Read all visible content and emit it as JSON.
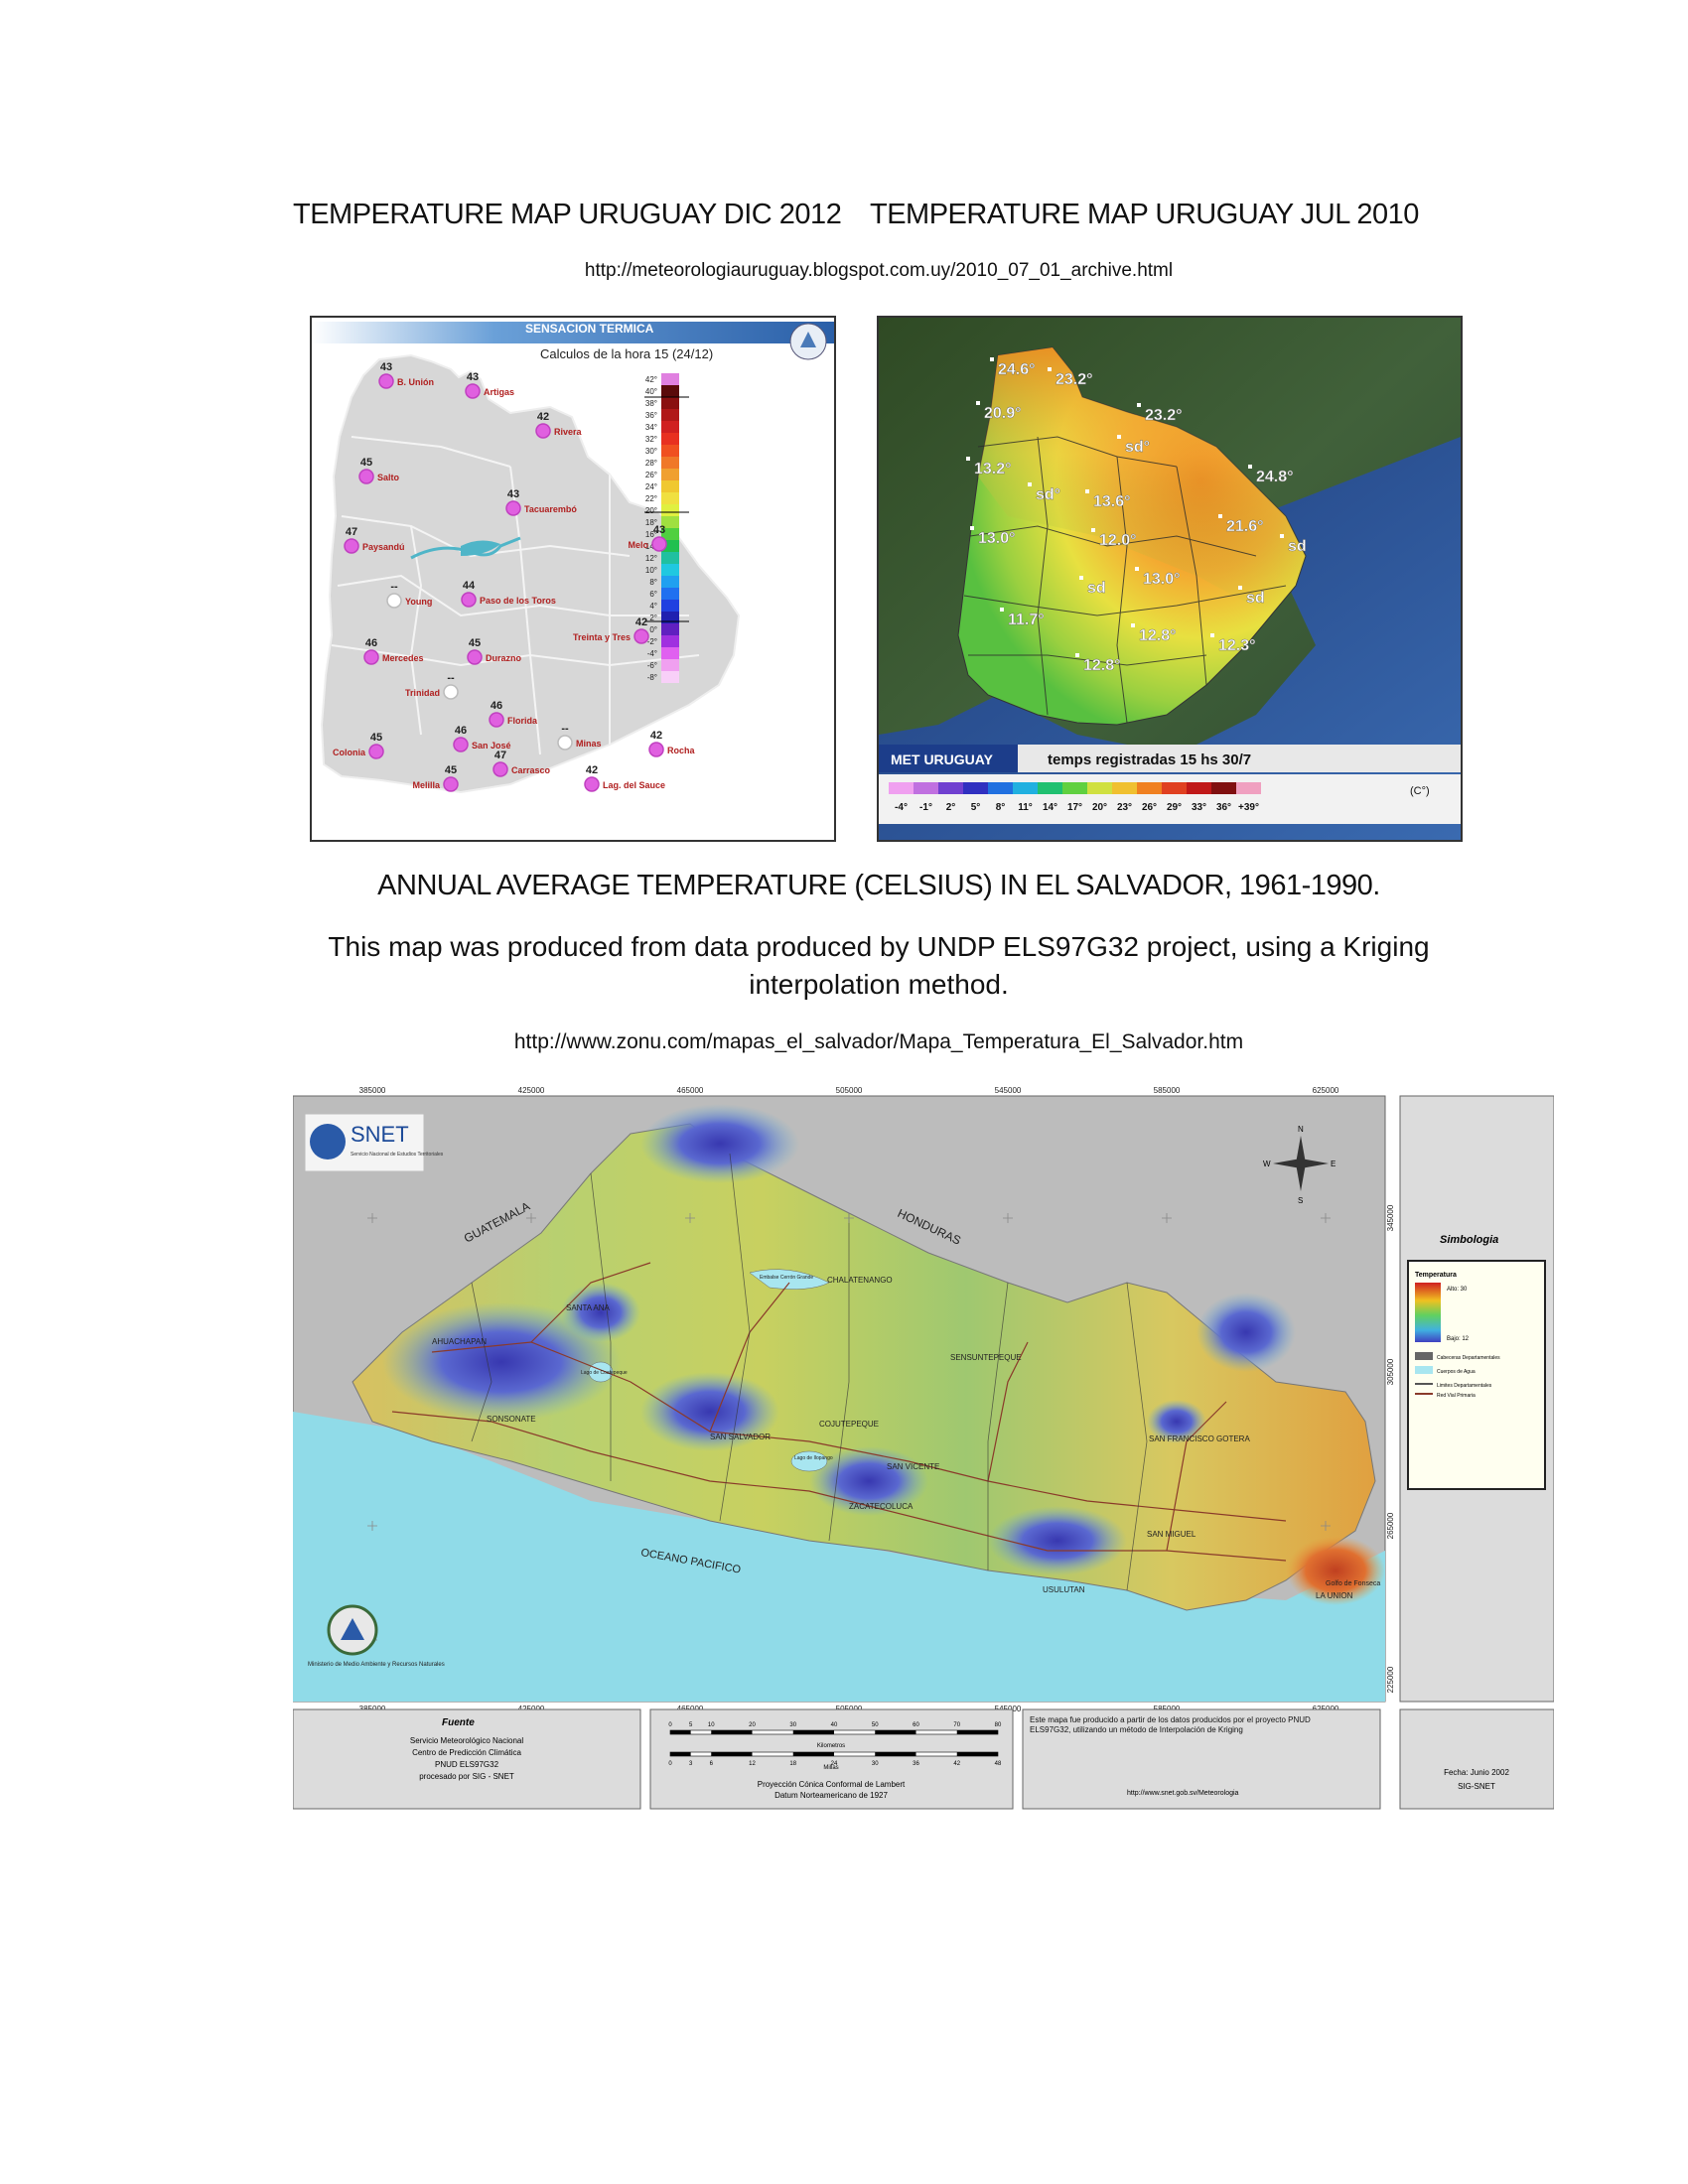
{
  "titles": {
    "uruguay_dic": "TEMPERATURE MAP URUGUAY DIC 2012",
    "uruguay_jul": "TEMPERATURE MAP URUGUAY JUL 2010",
    "uruguay_url": "http://meteorologiauruguay.blogspot.com.uy/2010_07_01_archive.html",
    "salvador_title": "ANNUAL AVERAGE TEMPERATURE (CELSIUS) IN EL SALVADOR, 1961-1990.",
    "salvador_desc": "This map was produced from data produced by UNDP ELS97G32 project, using a Kriging interpolation method.",
    "salvador_url": "http://www.zonu.com/mapas_el_salvador/Mapa_Temperatura_El_Salvador.htm"
  },
  "map1": {
    "header": "SENSACION TERMICA",
    "subheader": "Calculos de la hora 15 (24/12)",
    "stations": [
      {
        "name": "B. Unión",
        "value": "43"
      },
      {
        "name": "Artigas",
        "value": "43"
      },
      {
        "name": "Rivera",
        "value": "42"
      },
      {
        "name": "Salto",
        "value": "45"
      },
      {
        "name": "Tacuarembó",
        "value": "43"
      },
      {
        "name": "Paysandú",
        "value": "47"
      },
      {
        "name": "Melo",
        "value": "43"
      },
      {
        "name": "Young",
        "value": "--"
      },
      {
        "name": "Paso de los Toros",
        "value": "44"
      },
      {
        "name": "Treinta y Tres",
        "value": "42"
      },
      {
        "name": "Mercedes",
        "value": "46"
      },
      {
        "name": "Durazno",
        "value": "45"
      },
      {
        "name": "Trinidad",
        "value": "--"
      },
      {
        "name": "Florida",
        "value": "46"
      },
      {
        "name": "Colonia",
        "value": "45"
      },
      {
        "name": "San José",
        "value": "46"
      },
      {
        "name": "Minas",
        "value": "--"
      },
      {
        "name": "Rocha",
        "value": "42"
      },
      {
        "name": "Carrasco",
        "value": "47"
      },
      {
        "name": "Melilla",
        "value": "45"
      },
      {
        "name": "Lag. del Sauce",
        "value": "42"
      }
    ],
    "scale_labels": [
      "42°",
      "40°",
      "38°",
      "36°",
      "34°",
      "32°",
      "30°",
      "28°",
      "26°",
      "24°",
      "22°",
      "20°",
      "18°",
      "16°",
      "14°",
      "12°",
      "10°",
      "8°",
      "6°",
      "4°",
      "2°",
      "0°",
      "-2°",
      "-4°",
      "-6°",
      "-8°"
    ],
    "scale_colors": [
      "#e080e0",
      "#5a0a0a",
      "#8a1010",
      "#b01818",
      "#d02020",
      "#e83020",
      "#f05020",
      "#f07828",
      "#f0a030",
      "#f0c830",
      "#f0e040",
      "#e0f040",
      "#a0e040",
      "#50d040",
      "#20c050",
      "#20c0a0",
      "#20c8e0",
      "#20a0f0",
      "#2070f0",
      "#2040e0",
      "#2020b0",
      "#6020c0",
      "#a030e0",
      "#e060f0",
      "#f0a0f0",
      "#f8d0f8"
    ]
  },
  "map2": {
    "brand": "MET URUGUAY",
    "caption": "temps registradas 15 hs 30/7",
    "unit": "(C°)",
    "readings": [
      "24.6°",
      "23.2°",
      "20.9°",
      "23.2°",
      "sd°",
      "13.2°",
      "24.8°",
      "sd°",
      "13.6°",
      "21.6°",
      "13.0°",
      "12.0°",
      "sd",
      "13.0°",
      "sd",
      "11.7°",
      "sd",
      "12.8°",
      "12.3°",
      "12.8°"
    ],
    "scale_labels": [
      "-4°",
      "-1°",
      "2°",
      "5°",
      "8°",
      "11°",
      "14°",
      "17°",
      "20°",
      "23°",
      "26°",
      "29°",
      "33°",
      "36°",
      "+39°"
    ],
    "scale_colors": [
      "#f0a0f0",
      "#c070e0",
      "#7040d0",
      "#3030c0",
      "#2070e0",
      "#20b0e0",
      "#20c070",
      "#60d040",
      "#d0e040",
      "#f0c030",
      "#f08020",
      "#e04020",
      "#c01818",
      "#801010",
      "#f0a0c0"
    ]
  },
  "map3": {
    "top_ticks": [
      "385000",
      "425000",
      "465000",
      "505000",
      "545000",
      "585000",
      "625000"
    ],
    "bottom_ticks": [
      "385000",
      "425000",
      "465000",
      "505000",
      "545000",
      "585000",
      "625000"
    ],
    "right_ticks": [
      "345000",
      "305000",
      "265000",
      "225000"
    ],
    "logo": "SNET",
    "logo_sub": "Servicio Nacional de Estudios Territoriales",
    "country_labels": [
      "GUATEMALA",
      "HONDURAS",
      "OCEANO PACIFICO"
    ],
    "places": [
      "AHUACHAPAN",
      "SANTA ANA",
      "CHALATENANGO",
      "SENSUNTEPEQUE",
      "SONSONATE",
      "SAN SALVADOR",
      "COJUTEPEQUE",
      "SAN VICENTE",
      "SAN FRANCISCO GOTERA",
      "ZACATECOLUCA",
      "SAN MIGUEL",
      "USULUTAN",
      "LA UNION",
      "Golfo de Fonseca",
      "Lago de Ilopango",
      "Embalse Cerrón Grande",
      "Lago de Coatepeque"
    ],
    "ministry": "Ministerio de Medio Ambiente y Recursos Naturales",
    "legend": {
      "title": "Simbologia",
      "temp_title": "Temperatura",
      "high": "Alto: 30",
      "low": "Bajo: 12",
      "items": [
        "Cabeceras Departamentales",
        "Cuerpos de Agua",
        "Limites Departamentales",
        "Red Vial Primaria"
      ]
    },
    "fuente": {
      "title": "Fuente",
      "lines": [
        "Servicio Meteorológico Nacional",
        "Centro de Predicción Climática",
        "PNUD ELS97G32",
        "procesado por SIG - SNET"
      ]
    },
    "scale": {
      "km_ticks": [
        "0",
        "5",
        "10",
        "20",
        "30",
        "40",
        "50",
        "60",
        "70",
        "80"
      ],
      "km_label": "Kilometros",
      "mi_ticks": [
        "0",
        "3",
        "6",
        "12",
        "18",
        "24",
        "30",
        "36",
        "42",
        "48"
      ],
      "mi_label": "Millas",
      "projection": "Proyección Cónica Conformal de Lambert",
      "datum": "Datum Norteamericano de 1927"
    },
    "note": {
      "text": "Este mapa fue producido a partir de los datos producidos por el proyecto PNUD ELS97G32, utilizando un método de Interpolación de Kriging",
      "url": "http://www.snet.gob.sv/Meteorologia"
    },
    "date": {
      "line1": "Fecha: Junio 2002",
      "line2": "SIG-SNET"
    }
  }
}
